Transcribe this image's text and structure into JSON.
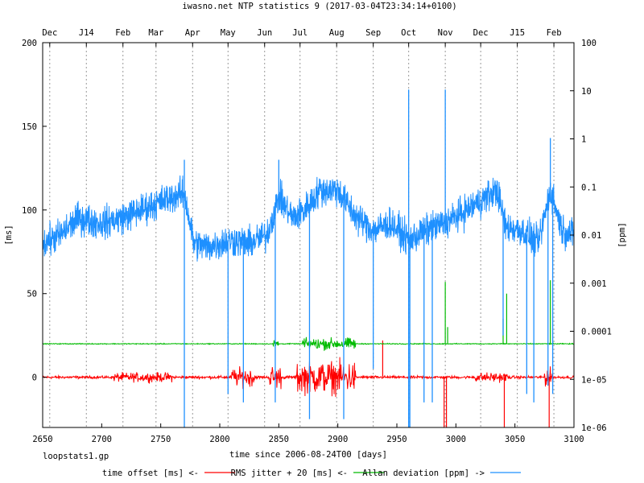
{
  "chart_data": {
    "type": "line",
    "title": "iwasno.net NTP statistics 9 (2017-03-04T23:34:14+0100)",
    "xlabel": "time since 2006-08-24T00 [days]",
    "ylabel": "[ms]",
    "y2label": "[ppm]",
    "footer_label": "loopstats1.gp",
    "xlim": [
      2650,
      3100
    ],
    "ylim": [
      -30,
      200
    ],
    "y2lim": [
      1e-06,
      100
    ],
    "y2scale": "log",
    "grid": "vertical dashed at month ticks",
    "legend_position": "bottom-center",
    "x_ticks": [
      "2650",
      "2700",
      "2750",
      "2800",
      "2850",
      "2900",
      "2950",
      "3000",
      "3050",
      "3100"
    ],
    "x_tick_values": [
      2650,
      2700,
      2750,
      2800,
      2850,
      2900,
      2950,
      3000,
      3050,
      3100
    ],
    "y_ticks": [
      "0",
      "50",
      "100",
      "150",
      "200"
    ],
    "y_tick_values": [
      0,
      50,
      100,
      150,
      200
    ],
    "y2_ticks": [
      "1e-06",
      "1e-05",
      "0.0001",
      "0.001",
      "0.01",
      "0.1",
      "1",
      "10",
      "100"
    ],
    "y2_tick_values": [
      1e-06,
      1e-05,
      0.0001,
      0.001,
      0.01,
      0.1,
      1,
      10,
      100
    ],
    "month_ticks": [
      {
        "label": "Dec",
        "x": 2656
      },
      {
        "label": "J14",
        "x": 2687
      },
      {
        "label": "Feb",
        "x": 2718
      },
      {
        "label": "Mar",
        "x": 2746
      },
      {
        "label": "Apr",
        "x": 2777
      },
      {
        "label": "May",
        "x": 2807
      },
      {
        "label": "Jun",
        "x": 2838
      },
      {
        "label": "Jul",
        "x": 2868
      },
      {
        "label": "Aug",
        "x": 2899
      },
      {
        "label": "Sep",
        "x": 2930
      },
      {
        "label": "Oct",
        "x": 2960
      },
      {
        "label": "Nov",
        "x": 2991
      },
      {
        "label": "Dec",
        "x": 3021
      },
      {
        "label": "J15",
        "x": 3052
      },
      {
        "label": "Feb",
        "x": 3083
      }
    ],
    "series": [
      {
        "name": "time offset [ms] <-",
        "color": "#ff0000",
        "axis": "left",
        "baseline": 0,
        "noise": 1.2,
        "bursts": [
          [
            2710,
            2760,
            4
          ],
          [
            2810,
            2830,
            8
          ],
          [
            2842,
            2852,
            10
          ],
          [
            2865,
            2915,
            14
          ],
          [
            3015,
            3045,
            4
          ],
          [
            3075,
            3082,
            8
          ]
        ],
        "spikes": [
          [
            2938,
            22
          ],
          [
            2990,
            -30
          ],
          [
            2992,
            -30
          ],
          [
            3041,
            -30
          ],
          [
            3079,
            -30
          ]
        ]
      },
      {
        "name": "RMS jitter + 20 [ms] <-",
        "color": "#00bb00",
        "axis": "left",
        "baseline": 20,
        "noise": 0.4,
        "bursts": [
          [
            2845,
            2850,
            4
          ],
          [
            2870,
            2915,
            5
          ]
        ],
        "spikes": [
          [
            2991,
            57
          ],
          [
            2993,
            30
          ],
          [
            3040,
            35
          ],
          [
            3043,
            50
          ],
          [
            3080,
            58
          ]
        ]
      },
      {
        "name": "Allan deviation [ppm] ->",
        "color": "#1e90ff",
        "axis": "right",
        "smooth_profile": [
          [
            2650,
            80
          ],
          [
            2665,
            85
          ],
          [
            2680,
            95
          ],
          [
            2700,
            92
          ],
          [
            2720,
            96
          ],
          [
            2740,
            102
          ],
          [
            2760,
            108
          ],
          [
            2770,
            110
          ],
          [
            2778,
            80
          ],
          [
            2790,
            78
          ],
          [
            2800,
            80
          ],
          [
            2810,
            82
          ],
          [
            2825,
            80
          ],
          [
            2840,
            85
          ],
          [
            2850,
            108
          ],
          [
            2862,
            95
          ],
          [
            2872,
            100
          ],
          [
            2885,
            112
          ],
          [
            2900,
            112
          ],
          [
            2915,
            96
          ],
          [
            2930,
            88
          ],
          [
            2945,
            92
          ],
          [
            2960,
            82
          ],
          [
            2975,
            88
          ],
          [
            2990,
            92
          ],
          [
            3005,
            98
          ],
          [
            3020,
            105
          ],
          [
            3035,
            112
          ],
          [
            3042,
            90
          ],
          [
            3055,
            88
          ],
          [
            3070,
            80
          ],
          [
            3080,
            112
          ],
          [
            3090,
            88
          ],
          [
            3100,
            85
          ]
        ],
        "noise": 14,
        "spikes_up": [
          [
            2770,
            130
          ],
          [
            2850,
            130
          ],
          [
            2960,
            172
          ],
          [
            2991,
            172
          ],
          [
            3080,
            143
          ]
        ],
        "spikes_down": [
          [
            2770,
            -30
          ],
          [
            2807,
            -10
          ],
          [
            2820,
            -15
          ],
          [
            2847,
            -15
          ],
          [
            2876,
            -25
          ],
          [
            2905,
            -25
          ],
          [
            2930,
            5
          ],
          [
            2960,
            -30
          ],
          [
            2961,
            -30
          ],
          [
            2973,
            -15
          ],
          [
            2980,
            -15
          ],
          [
            3040,
            25
          ],
          [
            3060,
            -10
          ],
          [
            3066,
            -15
          ],
          [
            3078,
            -5
          ],
          [
            3082,
            -10
          ]
        ]
      }
    ]
  }
}
